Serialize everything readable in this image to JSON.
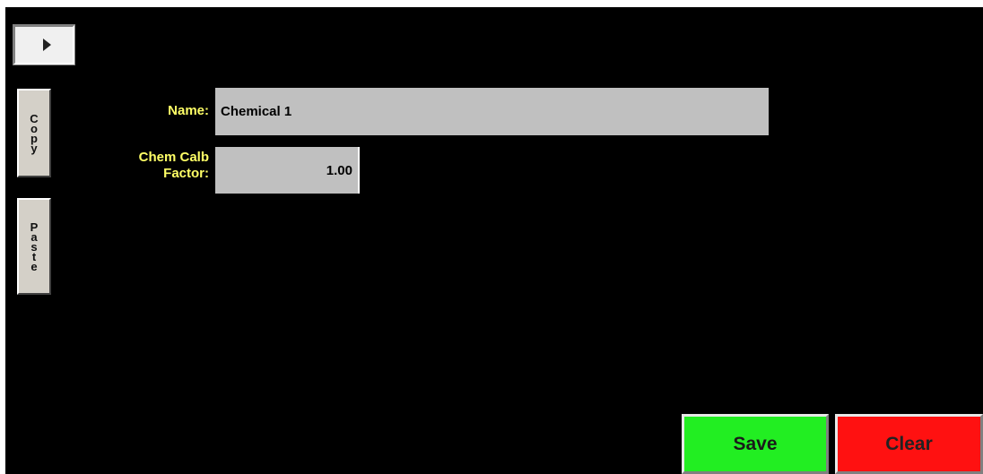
{
  "nav": {
    "play_icon": "play-triangle-icon"
  },
  "sidebar": {
    "copy_letters": [
      "C",
      "o",
      "p",
      "y"
    ],
    "paste_letters": [
      "P",
      "a",
      "s",
      "t",
      "e"
    ]
  },
  "form": {
    "name_label": "Name:",
    "name_value": "Chemical 1",
    "calb_label_line1": "Chem Calb",
    "calb_label_line2": "Factor:",
    "calb_value": "1.00"
  },
  "actions": {
    "save_label": "Save",
    "clear_label": "Clear"
  },
  "colors": {
    "background": "#000000",
    "label": "#ffff66",
    "field": "#c0c0c0",
    "save": "#22ee22",
    "clear": "#ff1111"
  }
}
